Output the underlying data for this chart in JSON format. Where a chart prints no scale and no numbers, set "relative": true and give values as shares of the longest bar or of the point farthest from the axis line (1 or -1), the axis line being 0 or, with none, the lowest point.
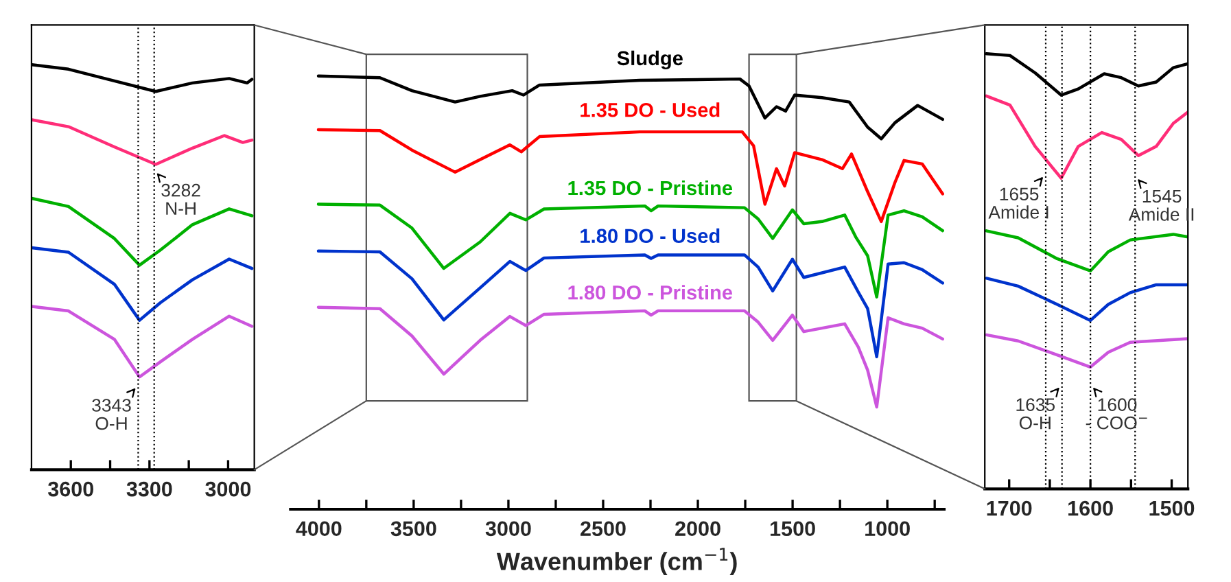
{
  "chart_data": [
    {
      "type": "line",
      "relative": true,
      "xlim": [
        3750,
        2900
      ],
      "xticks": [
        3600,
        {
          "value": 3450,
          "label": null
        },
        3300,
        {
          "value": 3150,
          "label": null
        },
        3000
      ],
      "series": [
        {
          "color": "#000000",
          "x": [
            3749,
            3609,
            3434,
            3276,
            3136,
            2996,
            2927,
            2909
          ],
          "values": [
            1.0,
            0.989,
            0.96,
            0.934,
            0.955,
            0.966,
            0.955,
            0.964
          ]
        },
        {
          "color": "#ff2d78",
          "x": [
            3749,
            3609,
            3434,
            3276,
            3136,
            3014,
            2944,
            2909
          ],
          "values": [
            0.864,
            0.847,
            0.797,
            0.754,
            0.794,
            0.825,
            0.808,
            0.814
          ]
        },
        {
          "color": "#00b000",
          "x": [
            3749,
            3609,
            3434,
            3338,
            3259,
            3136,
            2996,
            2909
          ],
          "values": [
            0.67,
            0.65,
            0.571,
            0.505,
            0.542,
            0.605,
            0.644,
            0.627
          ]
        },
        {
          "color": "#0033cc",
          "x": [
            3749,
            3609,
            3434,
            3338,
            3259,
            3136,
            2996,
            2909
          ],
          "values": [
            0.548,
            0.537,
            0.458,
            0.369,
            0.412,
            0.469,
            0.52,
            0.497
          ]
        },
        {
          "color": "#cc55dd",
          "x": [
            3749,
            3609,
            3434,
            3338,
            3259,
            3136,
            2996,
            2909
          ],
          "values": [
            0.403,
            0.392,
            0.322,
            0.229,
            0.266,
            0.322,
            0.379,
            0.354
          ]
        }
      ],
      "ref_lines": [
        {
          "axis": "x",
          "value": 3282,
          "line_style": "dotted",
          "color": "#000000"
        },
        {
          "axis": "x",
          "value": 3343,
          "line_style": "dotted",
          "color": "#000000"
        }
      ],
      "annotations": [
        {
          "text": "3282\nN-H",
          "x": 3282,
          "y": 0.74
        },
        {
          "text": "3343\nO-H",
          "x": 3343,
          "y": 0.209
        }
      ]
    },
    {
      "type": "line",
      "relative": true,
      "xlabel": "Wavenumber (cm$^{−1}$)",
      "xlim": [
        4150,
        700
      ],
      "xticks": [
        4000,
        {
          "value": 3750,
          "label": null
        },
        3500,
        {
          "value": 3250,
          "label": null
        },
        3000,
        {
          "value": 2750,
          "label": null
        },
        2500,
        {
          "value": 2250,
          "label": null
        },
        2000,
        {
          "value": 1750,
          "label": null
        },
        1500,
        {
          "value": 1250,
          "label": null
        },
        1000,
        {
          "value": 750,
          "label": null
        }
      ],
      "series": [
        {
          "name": "Sludge",
          "color": "#000000",
          "x": [
            4003,
            3678,
            3509,
            3281,
            3149,
            2980,
            2920,
            2836,
            2307,
            1778,
            1730,
            1646,
            1585,
            1537,
            1489,
            1345,
            1201,
            1104,
            1032,
            960,
            840,
            708
          ],
          "values": [
            1.0,
            0.996,
            0.966,
            0.94,
            0.953,
            0.966,
            0.956,
            0.979,
            0.99,
            0.993,
            0.977,
            0.903,
            0.929,
            0.919,
            0.956,
            0.95,
            0.94,
            0.882,
            0.855,
            0.892,
            0.932,
            0.9
          ]
        },
        {
          "name": "1.35 DO - Used",
          "color": "#ff0000",
          "x": [
            4003,
            3678,
            3509,
            3281,
            3149,
            2992,
            2932,
            2836,
            2307,
            1766,
            1706,
            1646,
            1585,
            1542,
            1489,
            1345,
            1237,
            1189,
            1104,
            1032,
            960,
            912,
            816,
            708
          ],
          "values": [
            0.876,
            0.874,
            0.829,
            0.778,
            0.807,
            0.841,
            0.825,
            0.86,
            0.871,
            0.871,
            0.839,
            0.704,
            0.786,
            0.746,
            0.823,
            0.807,
            0.786,
            0.82,
            0.733,
            0.664,
            0.754,
            0.805,
            0.797,
            0.728
          ]
        },
        {
          "name": "1.35 DO - Pristine",
          "color": "#00b000",
          "x": [
            4003,
            3678,
            3509,
            3341,
            3149,
            2992,
            2908,
            2812,
            2280,
            2247,
            2210,
            1754,
            1682,
            1605,
            1501,
            1441,
            1345,
            1225,
            1165,
            1104,
            1056,
            996,
            912,
            816,
            708
          ],
          "values": [
            0.704,
            0.702,
            0.649,
            0.556,
            0.617,
            0.683,
            0.668,
            0.693,
            0.7,
            0.689,
            0.7,
            0.696,
            0.67,
            0.625,
            0.691,
            0.659,
            0.664,
            0.679,
            0.627,
            0.585,
            0.49,
            0.679,
            0.689,
            0.675,
            0.643
          ]
        },
        {
          "name": "1.80 DO - Used",
          "color": "#0033cc",
          "x": [
            4003,
            3678,
            3509,
            3341,
            3149,
            2992,
            2908,
            2812,
            2280,
            2247,
            2210,
            1754,
            1682,
            1605,
            1501,
            1441,
            1225,
            1153,
            1104,
            1056,
            996,
            912,
            816,
            708
          ],
          "values": [
            0.596,
            0.594,
            0.532,
            0.437,
            0.511,
            0.572,
            0.551,
            0.58,
            0.587,
            0.579,
            0.587,
            0.587,
            0.559,
            0.504,
            0.577,
            0.535,
            0.559,
            0.501,
            0.463,
            0.352,
            0.566,
            0.569,
            0.553,
            0.522
          ]
        },
        {
          "name": "1.80 DO - Pristine",
          "color": "#cc55dd",
          "x": [
            4003,
            3678,
            3509,
            3341,
            3149,
            2992,
            2908,
            2812,
            2280,
            2247,
            2210,
            1754,
            1682,
            1605,
            1501,
            1441,
            1225,
            1153,
            1104,
            1056,
            996,
            912,
            816,
            708
          ],
          "values": [
            0.466,
            0.463,
            0.4,
            0.312,
            0.39,
            0.445,
            0.424,
            0.45,
            0.458,
            0.448,
            0.458,
            0.458,
            0.432,
            0.39,
            0.448,
            0.41,
            0.428,
            0.374,
            0.321,
            0.236,
            0.442,
            0.428,
            0.418,
            0.393
          ]
        }
      ]
    },
    {
      "type": "line",
      "relative": true,
      "xlim": [
        1730,
        1480
      ],
      "xticks": [
        1700,
        {
          "value": 1650,
          "label": null
        },
        1600,
        {
          "value": 1550,
          "label": null
        },
        1500
      ],
      "series": [
        {
          "color": "#000000",
          "x": [
            1728,
            1699,
            1668,
            1636,
            1615,
            1583,
            1562,
            1541,
            1519,
            1498,
            1480
          ],
          "values": [
            1.0,
            0.996,
            0.956,
            0.905,
            0.919,
            0.954,
            0.945,
            0.926,
            0.935,
            0.968,
            0.977
          ]
        },
        {
          "color": "#ff2d78",
          "x": [
            1728,
            1699,
            1668,
            1636,
            1615,
            1586,
            1562,
            1541,
            1519,
            1498,
            1480
          ],
          "values": [
            0.903,
            0.882,
            0.787,
            0.714,
            0.787,
            0.819,
            0.803,
            0.766,
            0.787,
            0.84,
            0.866
          ]
        },
        {
          "color": "#00b000",
          "x": [
            1728,
            1689,
            1641,
            1600,
            1578,
            1551,
            1498,
            1480
          ],
          "values": [
            0.593,
            0.577,
            0.529,
            0.501,
            0.545,
            0.572,
            0.585,
            0.579
          ]
        },
        {
          "color": "#0033cc",
          "x": [
            1728,
            1689,
            1641,
            1600,
            1578,
            1551,
            1519,
            1480
          ],
          "values": [
            0.484,
            0.466,
            0.424,
            0.387,
            0.424,
            0.451,
            0.469,
            0.469
          ]
        },
        {
          "color": "#cc55dd",
          "x": [
            1728,
            1689,
            1641,
            1600,
            1578,
            1551,
            1480
          ],
          "values": [
            0.354,
            0.34,
            0.308,
            0.28,
            0.314,
            0.337,
            0.345
          ]
        }
      ],
      "ref_lines": [
        {
          "axis": "x",
          "value": 1655,
          "line_style": "dotted",
          "color": "#000000"
        },
        {
          "axis": "x",
          "value": 1635,
          "line_style": "dotted",
          "color": "#000000"
        },
        {
          "axis": "x",
          "value": 1600,
          "line_style": "dotted",
          "color": "#000000"
        },
        {
          "axis": "x",
          "value": 1545,
          "line_style": "dotted",
          "color": "#000000"
        }
      ],
      "annotations": [
        {
          "text": "1655\nAmide I",
          "x": 1655,
          "y": 0.724
        },
        {
          "text": "1545\nAmide II",
          "x": 1545,
          "y": 0.719
        },
        {
          "text": "1635\nO-H",
          "x": 1635,
          "y": 0.24
        },
        {
          "text": "1600\n- COO$^{−}$",
          "x": 1600,
          "y": 0.24
        }
      ]
    }
  ]
}
